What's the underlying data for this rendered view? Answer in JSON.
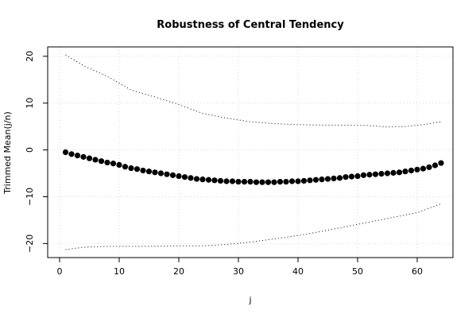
{
  "chart_data": {
    "type": "scatter",
    "title": "Robustness of Central Tendency",
    "xlabel": "j",
    "ylabel": "Trimmed Mean(j/n)",
    "xlim": [
      -2,
      66
    ],
    "ylim": [
      -23,
      22
    ],
    "x_ticks": [
      0,
      10,
      20,
      30,
      40,
      50,
      60
    ],
    "y_ticks": [
      -20,
      -10,
      0,
      10,
      20
    ],
    "grid": true,
    "series": [
      {
        "role": "points",
        "x": [
          1,
          2,
          3,
          4,
          5,
          6,
          7,
          8,
          9,
          10,
          11,
          12,
          13,
          14,
          15,
          16,
          17,
          18,
          19,
          20,
          21,
          22,
          23,
          24,
          25,
          26,
          27,
          28,
          29,
          30,
          31,
          32,
          33,
          34,
          35,
          36,
          37,
          38,
          39,
          40,
          41,
          42,
          43,
          44,
          45,
          46,
          47,
          48,
          49,
          50,
          51,
          52,
          53,
          54,
          55,
          56,
          57,
          58,
          59,
          60,
          61,
          62,
          63,
          64
        ],
        "y": [
          -0.5,
          -0.9,
          -1.2,
          -1.5,
          -1.8,
          -2.1,
          -2.4,
          -2.7,
          -2.9,
          -3.2,
          -3.6,
          -3.9,
          -4.1,
          -4.4,
          -4.6,
          -4.8,
          -5.0,
          -5.2,
          -5.4,
          -5.6,
          -5.8,
          -6.0,
          -6.2,
          -6.3,
          -6.4,
          -6.5,
          -6.6,
          -6.7,
          -6.7,
          -6.8,
          -6.8,
          -6.8,
          -6.9,
          -6.9,
          -6.9,
          -6.9,
          -6.8,
          -6.8,
          -6.7,
          -6.7,
          -6.6,
          -6.5,
          -6.4,
          -6.3,
          -6.2,
          -6.1,
          -6.0,
          -5.8,
          -5.7,
          -5.6,
          -5.4,
          -5.3,
          -5.2,
          -5.1,
          -5.0,
          -4.9,
          -4.8,
          -4.6,
          -4.4,
          -4.2,
          -4.0,
          -3.7,
          -3.3,
          -2.8
        ]
      },
      {
        "role": "upper-band",
        "x": [
          1,
          4,
          8,
          12,
          16,
          20,
          24,
          28,
          32,
          36,
          40,
          44,
          48,
          52,
          55,
          58,
          61,
          64
        ],
        "y": [
          20.3,
          18.0,
          15.7,
          12.8,
          11.3,
          9.7,
          7.8,
          6.8,
          6.0,
          5.6,
          5.4,
          5.3,
          5.3,
          5.2,
          4.9,
          5.0,
          5.4,
          6.0
        ]
      },
      {
        "role": "lower-band",
        "x": [
          1,
          4,
          8,
          12,
          16,
          20,
          24,
          28,
          32,
          36,
          40,
          44,
          48,
          52,
          56,
          60,
          64
        ],
        "y": [
          -21.3,
          -20.8,
          -20.6,
          -20.6,
          -20.6,
          -20.5,
          -20.5,
          -20.2,
          -19.7,
          -19.0,
          -18.3,
          -17.4,
          -16.4,
          -15.4,
          -14.4,
          -13.4,
          -11.5
        ]
      }
    ]
  }
}
